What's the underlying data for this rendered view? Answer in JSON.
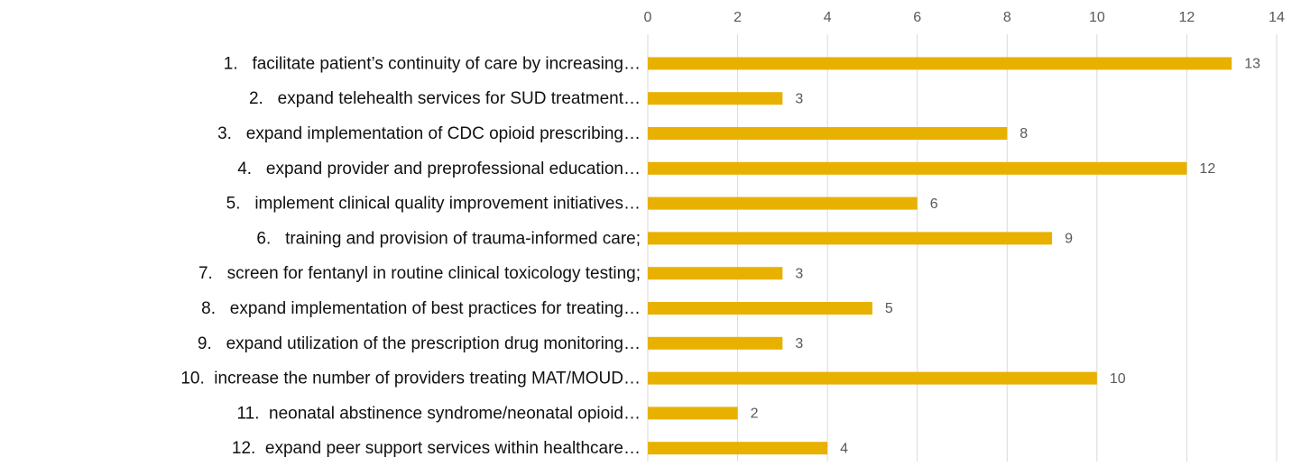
{
  "chart_data": {
    "type": "bar",
    "orientation": "horizontal",
    "categories": [
      "1.   facilitate patient’s continuity of care by increasing…",
      "2.   expand telehealth services for SUD treatment…",
      "3.   expand implementation of CDC opioid prescribing…",
      "4.   expand provider and preprofessional education…",
      "5.   implement clinical quality improvement initiatives…",
      "6.   training and provision of trauma-informed care;",
      "7.   screen for fentanyl in routine clinical toxicology testing;",
      "8.   expand implementation of best practices for treating…",
      "9.   expand utilization of the prescription drug monitoring…",
      "10.  increase the number of providers treating MAT/MOUD…",
      "11.  neonatal abstinence syndrome/neonatal opioid…",
      "12.  expand peer support services within healthcare…"
    ],
    "values": [
      13,
      3,
      8,
      12,
      6,
      9,
      3,
      5,
      3,
      10,
      2,
      4
    ],
    "color": "#e8b100",
    "xlim": [
      0,
      14
    ],
    "xticks": [
      0,
      2,
      4,
      6,
      8,
      10,
      12,
      14
    ],
    "grid": true
  }
}
